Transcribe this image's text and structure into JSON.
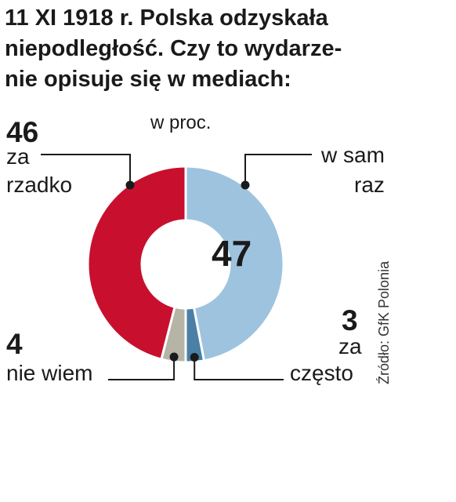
{
  "title_lines": [
    "11 XI 1918 r. Polska odzyskała",
    "niepodległość. Czy to wydarze-",
    "nie opisuje się w mediach:"
  ],
  "unit": "w proc.",
  "source": "Źródło: GfK Polonia",
  "colors": {
    "w_sam_raz": "#9dc3df",
    "za_czesto": "#4a7fa6",
    "nie_wiem": "#b5b4a5",
    "za_rzadko": "#c8102e"
  },
  "chart_data": {
    "type": "pie",
    "donut": true,
    "unit": "w proc.",
    "slices": [
      {
        "label": "w sam raz",
        "value": 47
      },
      {
        "label": "za często",
        "value": 3
      },
      {
        "label": "nie wiem",
        "value": 4
      },
      {
        "label": "za rzadko",
        "value": 46
      }
    ]
  },
  "labels": {
    "w_sam_raz": {
      "value": "47",
      "line1": "w sam",
      "line2": "raz"
    },
    "za_czesto": {
      "value": "3",
      "line1": "za",
      "line2": "często"
    },
    "nie_wiem": {
      "value": "4",
      "line1": "nie wiem"
    },
    "za_rzadko": {
      "value": "46",
      "line1": "za",
      "line2": "rzadko"
    }
  }
}
